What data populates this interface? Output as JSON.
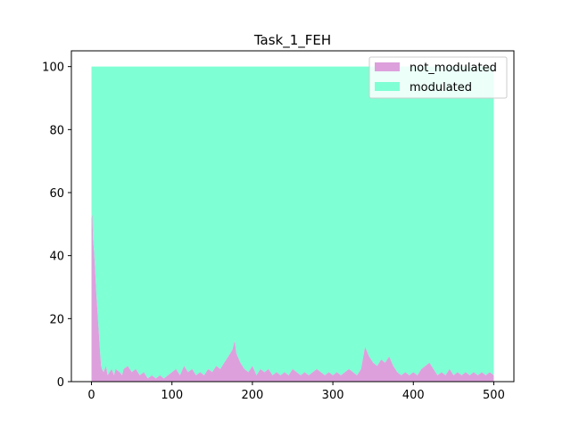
{
  "chart_data": {
    "type": "area",
    "stacked": true,
    "title": "Task_1_FEH",
    "xlabel": "",
    "ylabel": "",
    "xlim": [
      -25,
      525
    ],
    "ylim": [
      0,
      105
    ],
    "x_ticks": [
      0,
      100,
      200,
      300,
      400,
      500
    ],
    "y_ticks": [
      0,
      20,
      40,
      60,
      80,
      100
    ],
    "grid": false,
    "legend_position": "top-right",
    "x_range": [
      0,
      500
    ],
    "total": 100,
    "series": [
      {
        "name": "not_modulated",
        "color": "#dda0dd",
        "points": [
          [
            0,
            52
          ],
          [
            1,
            53
          ],
          [
            2,
            45
          ],
          [
            3,
            42
          ],
          [
            4,
            38
          ],
          [
            5,
            33
          ],
          [
            6,
            28
          ],
          [
            7,
            24
          ],
          [
            8,
            20
          ],
          [
            9,
            16
          ],
          [
            10,
            12
          ],
          [
            11,
            8
          ],
          [
            12,
            5
          ],
          [
            13,
            4
          ],
          [
            15,
            3
          ],
          [
            18,
            5
          ],
          [
            20,
            2
          ],
          [
            25,
            4
          ],
          [
            28,
            2
          ],
          [
            30,
            4
          ],
          [
            35,
            3
          ],
          [
            38,
            2
          ],
          [
            40,
            4
          ],
          [
            45,
            5
          ],
          [
            50,
            3
          ],
          [
            55,
            4
          ],
          [
            60,
            2
          ],
          [
            65,
            3
          ],
          [
            70,
            1
          ],
          [
            75,
            2
          ],
          [
            80,
            1
          ],
          [
            85,
            2
          ],
          [
            90,
            1
          ],
          [
            95,
            2
          ],
          [
            100,
            3
          ],
          [
            105,
            4
          ],
          [
            110,
            2
          ],
          [
            115,
            5
          ],
          [
            120,
            3
          ],
          [
            125,
            4
          ],
          [
            130,
            2
          ],
          [
            135,
            3
          ],
          [
            140,
            2
          ],
          [
            145,
            4
          ],
          [
            150,
            3
          ],
          [
            155,
            5
          ],
          [
            160,
            4
          ],
          [
            165,
            6
          ],
          [
            170,
            8
          ],
          [
            175,
            10
          ],
          [
            178,
            13
          ],
          [
            180,
            9
          ],
          [
            185,
            6
          ],
          [
            190,
            4
          ],
          [
            195,
            3
          ],
          [
            200,
            5
          ],
          [
            205,
            2
          ],
          [
            210,
            4
          ],
          [
            215,
            3
          ],
          [
            220,
            4
          ],
          [
            225,
            2
          ],
          [
            230,
            3
          ],
          [
            235,
            2
          ],
          [
            240,
            3
          ],
          [
            245,
            2
          ],
          [
            250,
            4
          ],
          [
            255,
            3
          ],
          [
            260,
            2
          ],
          [
            265,
            3
          ],
          [
            270,
            2
          ],
          [
            275,
            3
          ],
          [
            280,
            4
          ],
          [
            285,
            3
          ],
          [
            290,
            2
          ],
          [
            295,
            3
          ],
          [
            300,
            2
          ],
          [
            305,
            3
          ],
          [
            310,
            2
          ],
          [
            315,
            3
          ],
          [
            320,
            4
          ],
          [
            325,
            3
          ],
          [
            330,
            2
          ],
          [
            335,
            4
          ],
          [
            340,
            11
          ],
          [
            345,
            8
          ],
          [
            350,
            6
          ],
          [
            355,
            5
          ],
          [
            360,
            7
          ],
          [
            365,
            6
          ],
          [
            370,
            8
          ],
          [
            375,
            5
          ],
          [
            380,
            3
          ],
          [
            385,
            2
          ],
          [
            390,
            3
          ],
          [
            395,
            2
          ],
          [
            400,
            3
          ],
          [
            405,
            2
          ],
          [
            410,
            4
          ],
          [
            415,
            5
          ],
          [
            420,
            6
          ],
          [
            425,
            4
          ],
          [
            430,
            2
          ],
          [
            435,
            3
          ],
          [
            440,
            2
          ],
          [
            445,
            4
          ],
          [
            450,
            2
          ],
          [
            455,
            3
          ],
          [
            460,
            2
          ],
          [
            465,
            3
          ],
          [
            470,
            2
          ],
          [
            475,
            3
          ],
          [
            480,
            2
          ],
          [
            485,
            3
          ],
          [
            490,
            2
          ],
          [
            495,
            3
          ],
          [
            500,
            2
          ]
        ]
      },
      {
        "name": "modulated",
        "color": "#7fffd4"
      }
    ]
  }
}
